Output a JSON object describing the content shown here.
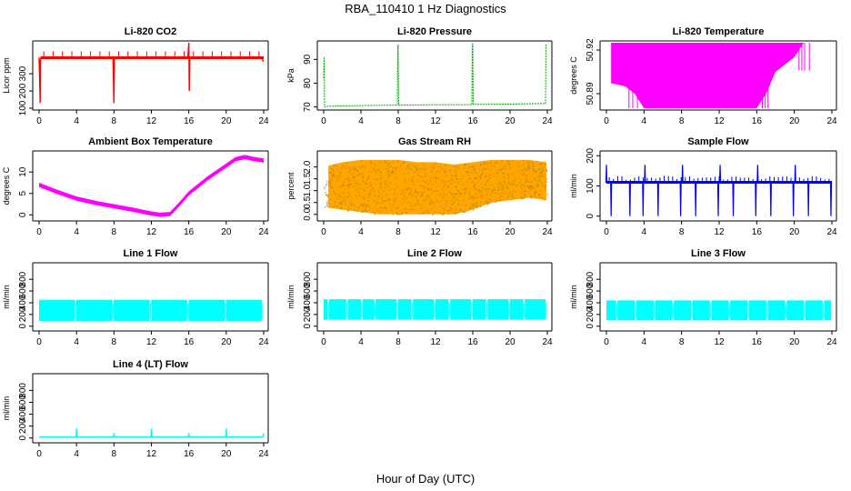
{
  "figure": {
    "title": "RBA_110410  1 Hz Diagnostics",
    "xlabel": "Hour of Day (UTC)"
  },
  "chart_data": [
    {
      "type": "line",
      "title": "Li-820 CO2",
      "ylabel": "Licor ppm",
      "xlim": [
        0,
        24
      ],
      "ylim": [
        100,
        480
      ],
      "xticks": [
        0,
        4,
        8,
        12,
        16,
        20,
        24
      ],
      "xtick_labels": [
        "0",
        "4",
        "8",
        "12",
        "16",
        "20",
        "24"
      ],
      "yticks": [
        100,
        200,
        300
      ],
      "ytick_labels": [
        "100",
        "200",
        "300"
      ],
      "color": "#ff0000",
      "series": [
        {
          "x": [
            0,
            0.1,
            0.12,
            0.15,
            0.2,
            2,
            4,
            6,
            7.9,
            8,
            8.05,
            8.1,
            10,
            12,
            14,
            15.9,
            16,
            16.05,
            16.1,
            18,
            20,
            22,
            23.7,
            24
          ],
          "y": [
            395,
            180,
            130,
            380,
            392,
            393,
            394,
            392,
            393,
            130,
            390,
            393,
            392,
            393,
            392,
            393,
            480,
            200,
            392,
            393,
            392,
            393,
            395,
            370
          ]
        }
      ]
    },
    {
      "type": "line",
      "title": "Li-820 Pressure",
      "ylabel": "kPa",
      "xlim": [
        0,
        24
      ],
      "ylim": [
        69.5,
        97
      ],
      "xticks": [
        0,
        4,
        8,
        12,
        16,
        20,
        24
      ],
      "xtick_labels": [
        "0",
        "4",
        "8",
        "12",
        "16",
        "20",
        "24"
      ],
      "yticks": [
        70,
        80,
        90
      ],
      "ytick_labels": [
        "70",
        "80",
        "90"
      ],
      "color": "#00aa00",
      "series": [
        {
          "x": [
            0,
            0.05,
            0.1,
            0.3,
            4,
            7.9,
            7.95,
            8.0,
            8.05,
            12,
            15.9,
            15.95,
            16.0,
            16.05,
            20,
            23.8,
            23.85,
            23.9
          ],
          "y": [
            82,
            91,
            70,
            70.3,
            70.6,
            70.8,
            96,
            96,
            70.8,
            71,
            71,
            96.5,
            96.5,
            71.1,
            71.2,
            71.5,
            96,
            96
          ]
        }
      ]
    },
    {
      "type": "area",
      "title": "Li-820 Temperature",
      "ylabel": "degrees C",
      "xlim": [
        0,
        24
      ],
      "ylim": [
        50.88,
        50.925
      ],
      "xticks": [
        0,
        4,
        8,
        12,
        16,
        20,
        24
      ],
      "xtick_labels": [
        "0",
        "4",
        "8",
        "12",
        "16",
        "20",
        "24"
      ],
      "yticks": [
        50.89,
        50.92
      ],
      "ytick_labels": [
        "50.89",
        "50.92"
      ],
      "color": "#ff00ff",
      "series": [
        {
          "x": [
            0,
            2,
            3,
            4,
            6,
            8,
            10,
            12,
            14,
            16,
            17,
            18,
            20,
            21,
            24
          ],
          "y_low": [
            50.898,
            50.895,
            50.89,
            50.88,
            50.88,
            50.88,
            50.88,
            50.88,
            50.88,
            50.88,
            50.89,
            50.905,
            50.915,
            50.925,
            50.925
          ],
          "y_high": [
            50.925,
            50.925,
            50.925,
            50.925,
            50.925,
            50.925,
            50.925,
            50.925,
            50.925,
            50.925,
            50.925,
            50.925,
            50.925,
            50.925,
            50.925
          ]
        }
      ]
    },
    {
      "type": "line",
      "title": "Ambient Box Temperature",
      "ylabel": "degrees C",
      "xlim": [
        0,
        24
      ],
      "ylim": [
        -1,
        14.5
      ],
      "xticks": [
        0,
        4,
        8,
        12,
        16,
        20,
        24
      ],
      "xtick_labels": [
        "0",
        "4",
        "8",
        "12",
        "16",
        "20",
        "24"
      ],
      "yticks": [
        0,
        5,
        10
      ],
      "ytick_labels": [
        "0",
        "5",
        "10"
      ],
      "color": "#ff00ff",
      "series": [
        {
          "x": [
            0,
            2,
            4,
            6,
            8,
            10,
            12,
            13,
            14,
            15,
            16,
            18,
            20,
            21,
            22,
            23,
            24
          ],
          "y": [
            7,
            5.3,
            3.8,
            2.8,
            2.0,
            1.2,
            0.3,
            0,
            0.2,
            2.5,
            5,
            8.5,
            11.5,
            13,
            13.5,
            13,
            12.7
          ]
        }
      ]
    },
    {
      "type": "area",
      "title": "Gas Stream RH",
      "ylabel": "percent",
      "xlim": [
        0,
        24
      ],
      "ylim": [
        -0.2,
        2.6
      ],
      "xticks": [
        0,
        4,
        8,
        12,
        16,
        20,
        24
      ],
      "xtick_labels": [
        "0",
        "4",
        "8",
        "12",
        "16",
        "20",
        "24"
      ],
      "yticks": [
        0.0,
        0.5,
        1.0,
        1.5,
        2.0
      ],
      "ytick_labels": [
        "0.0",
        "0.5",
        "1.0",
        "1.5",
        "2.0"
      ],
      "color": "#ffa500",
      "series": [
        {
          "x": [
            0,
            2,
            4,
            6,
            8,
            10,
            12,
            14,
            16,
            18,
            20,
            22,
            24
          ],
          "y_low": [
            0.3,
            0.2,
            0.1,
            0.0,
            0.0,
            0.0,
            0.0,
            0.0,
            0.2,
            0.5,
            0.6,
            0.7,
            0.6
          ],
          "y_high": [
            2.0,
            2.2,
            2.3,
            2.3,
            2.3,
            2.2,
            2.2,
            2.1,
            2.2,
            2.3,
            2.3,
            2.3,
            2.2
          ]
        }
      ]
    },
    {
      "type": "line",
      "title": "Sample Flow",
      "ylabel": "ml/min",
      "xlim": [
        0,
        24
      ],
      "ylim": [
        -10,
        210
      ],
      "xticks": [
        0,
        4,
        8,
        12,
        16,
        20,
        24
      ],
      "xtick_labels": [
        "0",
        "4",
        "8",
        "12",
        "16",
        "20",
        "24"
      ],
      "yticks": [
        0,
        100,
        200
      ],
      "ytick_labels": [
        "0",
        "100",
        "200"
      ],
      "color": "#0000ff",
      "base": 112,
      "dips": [
        0.5,
        2.5,
        3.9,
        5.5,
        7.9,
        9.5,
        11.9,
        13.5,
        15.9,
        17.5,
        19.9,
        21.5,
        23.9
      ],
      "dip_value": 0,
      "spikes": [
        0,
        4.1,
        8.1,
        12.1,
        16.1,
        20.1
      ],
      "spike_value": 170
    },
    {
      "type": "area",
      "title": "Line 1 Flow",
      "ylabel": "ml/min",
      "xlim": [
        0,
        24
      ],
      "ylim": [
        -50,
        1050
      ],
      "xticks": [
        0,
        4,
        8,
        12,
        16,
        20,
        24
      ],
      "xtick_labels": [
        "0",
        "4",
        "8",
        "12",
        "16",
        "20",
        "24"
      ],
      "yticks": [
        0,
        200,
        400,
        600,
        800
      ],
      "ytick_labels": [
        "0",
        "200",
        "400",
        "600",
        "800"
      ],
      "color": "#00ffff",
      "band_low": 90,
      "band_high": 450,
      "gaps": [
        3.9,
        7.9,
        11.9,
        15.9,
        19.9,
        23.9
      ]
    },
    {
      "type": "area",
      "title": "Line 2 Flow",
      "ylabel": "ml/min",
      "xlim": [
        0,
        24
      ],
      "ylim": [
        -50,
        1050
      ],
      "xticks": [
        0,
        4,
        8,
        12,
        16,
        20,
        24
      ],
      "xtick_labels": [
        "0",
        "4",
        "8",
        "12",
        "16",
        "20",
        "24"
      ],
      "yticks": [
        0,
        200,
        400,
        600,
        800
      ],
      "ytick_labels": [
        "0",
        "200",
        "400",
        "600",
        "800"
      ],
      "color": "#00ffff",
      "band_low": 110,
      "band_high": 460,
      "gaps": [
        0.5,
        2.5,
        4.1,
        5.5,
        7.9,
        9.5,
        11.9,
        13.5,
        15.9,
        17.5,
        19.9,
        21.5,
        23.9
      ]
    },
    {
      "type": "area",
      "title": "Line 3 Flow",
      "ylabel": "ml/min",
      "xlim": [
        0,
        24
      ],
      "ylim": [
        -50,
        1050
      ],
      "xticks": [
        0,
        4,
        8,
        12,
        16,
        20,
        24
      ],
      "xtick_labels": [
        "0",
        "4",
        "8",
        "12",
        "16",
        "20",
        "24"
      ],
      "yticks": [
        0,
        200,
        400,
        600,
        800
      ],
      "ytick_labels": [
        "0",
        "200",
        "400",
        "600",
        "800"
      ],
      "color": "#00ffff",
      "band_low": 100,
      "band_high": 440,
      "gaps": [
        1.1,
        3.1,
        5.1,
        7.1,
        9.1,
        11.1,
        13.1,
        15.1,
        17.1,
        19.1,
        21.1,
        23.1
      ]
    },
    {
      "type": "line",
      "title": "Line 4 (LT) Flow",
      "ylabel": "ml/min",
      "xlim": [
        0,
        24
      ],
      "ylim": [
        -50,
        1050
      ],
      "xticks": [
        0,
        4,
        8,
        12,
        16,
        20,
        24
      ],
      "xtick_labels": [
        "0",
        "4",
        "8",
        "12",
        "16",
        "20",
        "24"
      ],
      "yticks": [
        0,
        200,
        400,
        600,
        800
      ],
      "ytick_labels": [
        "0",
        "200",
        "400",
        "600",
        "800"
      ],
      "color": "#00ffff",
      "series": [
        {
          "x": [
            0,
            3.95,
            4.0,
            4.05,
            4.1,
            7.95,
            8.0,
            8.05,
            11.95,
            12.0,
            12.05,
            12.1,
            15.95,
            16.0,
            16.05,
            19.95,
            20.0,
            20.05,
            20.1,
            23.95,
            24.0
          ],
          "y": [
            20,
            20,
            160,
            40,
            20,
            20,
            80,
            20,
            20,
            160,
            40,
            20,
            20,
            80,
            20,
            20,
            160,
            40,
            20,
            20,
            80
          ]
        }
      ]
    }
  ]
}
